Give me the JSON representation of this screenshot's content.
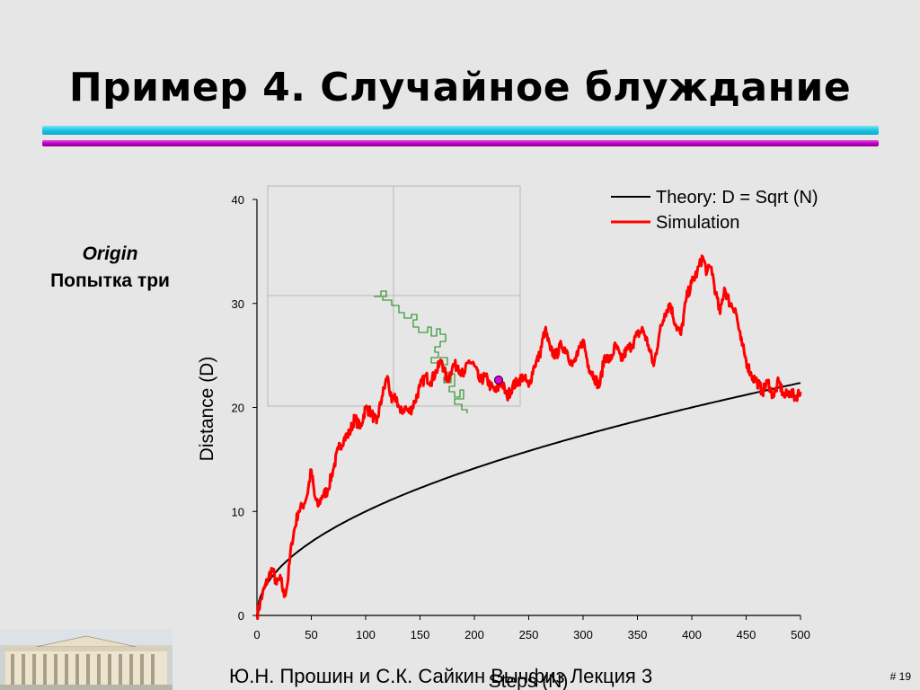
{
  "slide": {
    "title": "Пример 4. Случайное блуждание",
    "side_label_line1": "Origin",
    "side_label_line2": "Попытка три",
    "footer": "Ю.Н. Прошин и С.К. Сайкин Вычфиз Лекция 3",
    "page_number": "# 19"
  },
  "colors": {
    "background": "#e6e6e6",
    "bar_cyan": "#19c6e6",
    "bar_magenta": "#c000c0",
    "simulation": "#ff0000",
    "theory": "#000000",
    "walk_path": "#1a8c1a",
    "walker_marker": "#e000e0"
  },
  "chart_data": {
    "type": "line",
    "xlabel": "Steps (N)",
    "ylabel": "Distance (D)",
    "xlim": [
      0,
      500
    ],
    "ylim": [
      0,
      40
    ],
    "xticks": [
      0,
      50,
      100,
      150,
      200,
      250,
      300,
      350,
      400,
      450,
      500
    ],
    "yticks": [
      0,
      10,
      20,
      30,
      40
    ],
    "legend_position": "top-right",
    "series": [
      {
        "name": "Theory: D = Sqrt (N)",
        "function": "sqrt",
        "x": [
          0,
          5,
          10,
          20,
          30,
          50,
          75,
          100,
          150,
          200,
          250,
          300,
          350,
          400,
          450,
          500
        ],
        "values": [
          0,
          2.24,
          3.16,
          4.47,
          5.48,
          7.07,
          8.66,
          10,
          12.25,
          14.14,
          15.81,
          17.32,
          18.71,
          20,
          21.21,
          22.36
        ]
      },
      {
        "name": "Simulation",
        "x": [
          0,
          5,
          10,
          14,
          18,
          22,
          25,
          28,
          32,
          38,
          42,
          46,
          50,
          53,
          56,
          60,
          65,
          70,
          75,
          80,
          85,
          90,
          95,
          100,
          105,
          110,
          115,
          120,
          124,
          128,
          132,
          136,
          140,
          145,
          150,
          155,
          160,
          165,
          170,
          175,
          180,
          185,
          190,
          195,
          200,
          205,
          210,
          215,
          220,
          225,
          230,
          235,
          240,
          245,
          250,
          255,
          260,
          265,
          270,
          275,
          280,
          285,
          290,
          295,
          300,
          305,
          310,
          315,
          320,
          325,
          330,
          335,
          340,
          345,
          350,
          355,
          360,
          365,
          370,
          375,
          380,
          385,
          390,
          395,
          400,
          405,
          410,
          414,
          418,
          422,
          426,
          430,
          435,
          440,
          445,
          450,
          455,
          460,
          465,
          470,
          475,
          480,
          485,
          490,
          495,
          500
        ],
        "values": [
          0,
          2,
          3.5,
          4.5,
          3,
          3.5,
          1.8,
          3,
          7,
          10,
          10.5,
          11.5,
          14,
          11.5,
          10.5,
          11.5,
          12,
          14,
          16,
          17,
          17.5,
          19,
          18,
          20,
          19.5,
          18.5,
          21,
          23,
          20.5,
          21,
          19.5,
          20,
          19.5,
          20.5,
          22,
          23,
          22.5,
          23.5,
          24.5,
          22.5,
          24,
          24,
          23,
          24.5,
          24,
          22.5,
          23,
          22,
          21.5,
          22.5,
          21,
          22,
          22.5,
          23,
          22,
          24,
          25,
          27.5,
          25.5,
          25,
          26,
          25.5,
          24,
          25,
          26.5,
          24,
          23,
          22,
          25,
          24.5,
          26,
          24.5,
          25.5,
          26,
          27,
          27.5,
          26,
          24,
          27,
          29,
          30,
          28,
          27,
          30.5,
          32,
          33,
          34.5,
          33,
          33.5,
          31,
          29,
          31.5,
          30,
          29.5,
          26.5,
          24.5,
          23,
          22.5,
          21.5,
          22.5,
          21,
          22.5,
          21,
          21.5,
          21,
          21.5
        ]
      }
    ]
  }
}
